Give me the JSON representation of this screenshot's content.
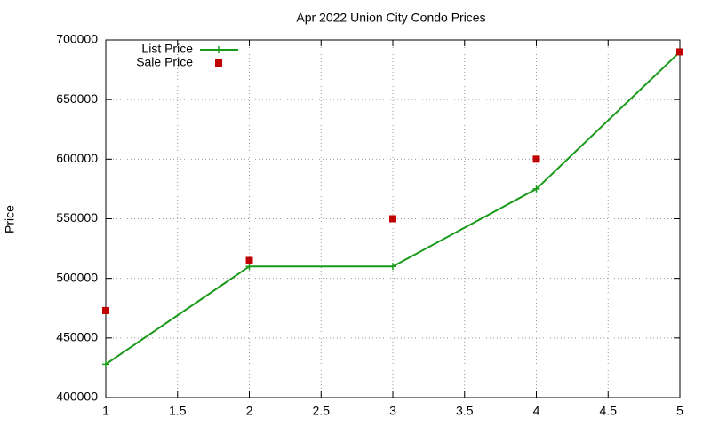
{
  "chart_data": {
    "type": "line",
    "title": "Apr 2022 Union City Condo Prices",
    "y_label": "Price",
    "x": [
      1,
      2,
      3,
      4,
      5
    ],
    "series": [
      {
        "name": "List Price",
        "color": "#1a9a1a",
        "style": "linespoints",
        "values": [
          428000,
          510000,
          510000,
          575000,
          690000
        ]
      },
      {
        "name": "Sale Price",
        "color": "#c00000",
        "style": "points",
        "values": [
          473000,
          515000,
          550000,
          600000,
          690000
        ]
      }
    ],
    "xlim": [
      1,
      5
    ],
    "xticks": [
      1,
      1.5,
      2,
      2.5,
      3,
      3.5,
      4,
      4.5,
      5
    ],
    "ylim": [
      400000,
      700000
    ],
    "yticks": [
      400000,
      450000,
      500000,
      550000,
      600000,
      650000,
      700000
    ],
    "grid": true,
    "legend": "top-left"
  }
}
